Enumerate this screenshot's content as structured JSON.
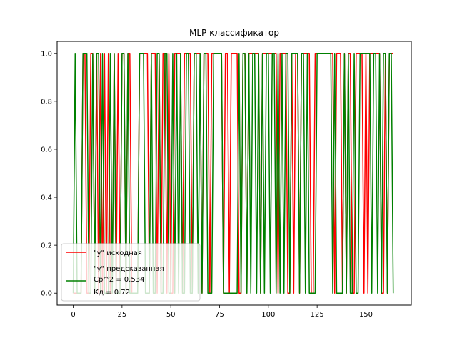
{
  "chart_data": {
    "type": "line",
    "title": "MLP классификатор",
    "xlabel": "",
    "ylabel": "",
    "xlim": [
      -8.25,
      173.25
    ],
    "ylim": [
      -0.05,
      1.05
    ],
    "x_ticks": [
      0,
      25,
      50,
      75,
      100,
      125,
      150
    ],
    "x_tick_labels": [
      "0",
      "25",
      "50",
      "75",
      "100",
      "125",
      "150"
    ],
    "y_ticks": [
      0.0,
      0.2,
      0.4,
      0.6,
      0.8,
      1.0
    ],
    "y_tick_labels": [
      "0.0",
      "0.2",
      "0.4",
      "0.6",
      "0.8",
      "1.0"
    ],
    "grid": false,
    "legend_position": "lower-left",
    "legend": {
      "entries": [
        "\"y\" исходная",
        "\"y\" предсказанная"
      ],
      "extra_lines": [
        "Cp^2 = 0.534",
        "Кд = 0.72"
      ]
    },
    "series": [
      {
        "name": "\"y\" исходная",
        "color": "#ff0000",
        "values": [
          0,
          0,
          0,
          0,
          0,
          1,
          1,
          0,
          0,
          1,
          1,
          0,
          1,
          0,
          1,
          0,
          1,
          0,
          1,
          0,
          0,
          1,
          0,
          1,
          0,
          1,
          1,
          0,
          1,
          1,
          0,
          0,
          0,
          0,
          1,
          1,
          1,
          1,
          1,
          0,
          1,
          1,
          1,
          0,
          1,
          0,
          1,
          1,
          0,
          1,
          0,
          0,
          1,
          1,
          1,
          1,
          0,
          1,
          1,
          1,
          1,
          0,
          1,
          1,
          1,
          1,
          0,
          1,
          1,
          1,
          0,
          1,
          1,
          1,
          1,
          1,
          1,
          0,
          1,
          1,
          0,
          1,
          1,
          1,
          1,
          0,
          0,
          1,
          1,
          0,
          1,
          1,
          1,
          1,
          1,
          1,
          0,
          1,
          1,
          1,
          1,
          1,
          1,
          1,
          1,
          0,
          1,
          1,
          1,
          1,
          0,
          0,
          1,
          0,
          1,
          1,
          0,
          1,
          1,
          1,
          1,
          1,
          0,
          0,
          1,
          1,
          1,
          1,
          1,
          1,
          1,
          1,
          1,
          1,
          0,
          1,
          1,
          1,
          0,
          1,
          0,
          1,
          1,
          0,
          0,
          1,
          1,
          1,
          1,
          0,
          1,
          0,
          1,
          1,
          1,
          1,
          1,
          1,
          0,
          0,
          1,
          0,
          1,
          1,
          1
        ]
      },
      {
        "name": "\"y\" предсказанная",
        "color": "#008000",
        "values": [
          0,
          1,
          0,
          0,
          0,
          1,
          1,
          1,
          0,
          0,
          1,
          0,
          1,
          1,
          0,
          1,
          0,
          0,
          0,
          1,
          0,
          1,
          0,
          0,
          0,
          1,
          1,
          0,
          1,
          0,
          0,
          0,
          0,
          0,
          1,
          1,
          1,
          0,
          0,
          0,
          1,
          0,
          0,
          1,
          1,
          0,
          0,
          1,
          1,
          0,
          0,
          1,
          0,
          1,
          0,
          1,
          0,
          0,
          1,
          1,
          0,
          0,
          1,
          1,
          0,
          1,
          0,
          1,
          1,
          0,
          0,
          0,
          1,
          1,
          1,
          1,
          1,
          0,
          0,
          0,
          0,
          0,
          0,
          0,
          0,
          1,
          0,
          1,
          1,
          0,
          1,
          0,
          1,
          1,
          0,
          1,
          0,
          1,
          0,
          1,
          1,
          0,
          1,
          1,
          0,
          1,
          0,
          1,
          0,
          1,
          1,
          0,
          1,
          1,
          1,
          1,
          0,
          1,
          1,
          0,
          1,
          0,
          0,
          0,
          0,
          1,
          1,
          1,
          1,
          1,
          1,
          1,
          1,
          0,
          1,
          0,
          0,
          0,
          0,
          1,
          0,
          1,
          0,
          0,
          1,
          0,
          0,
          1,
          1,
          1,
          1,
          1,
          1,
          0,
          1,
          1,
          0,
          1,
          0,
          1,
          1,
          0,
          1,
          1,
          0
        ]
      }
    ]
  }
}
